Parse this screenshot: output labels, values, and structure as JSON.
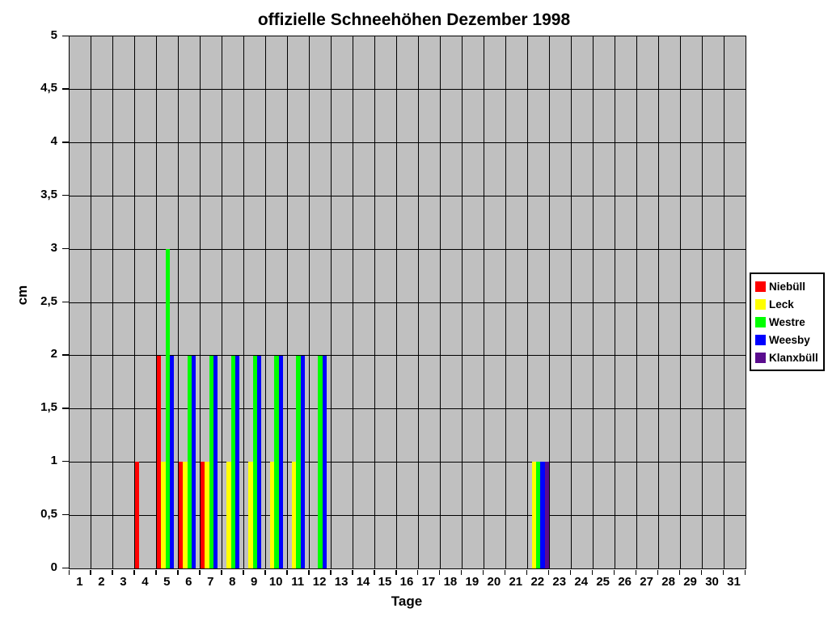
{
  "title": "offizielle Schneehöhen Dezember 1998",
  "chart_data": {
    "type": "bar",
    "title": "offizielle Schneehöhen Dezember 1998",
    "xlabel": "Tage",
    "ylabel": "cm",
    "ylim": [
      0,
      5
    ],
    "y_tick_step": 0.5,
    "y_tick_labels": [
      "0",
      "0,5",
      "1",
      "1,5",
      "2",
      "2,5",
      "3",
      "3,5",
      "4",
      "4,5",
      "5"
    ],
    "categories": [
      "1",
      "2",
      "3",
      "4",
      "5",
      "6",
      "7",
      "8",
      "9",
      "10",
      "11",
      "12",
      "13",
      "14",
      "15",
      "16",
      "17",
      "18",
      "19",
      "20",
      "21",
      "22",
      "23",
      "24",
      "25",
      "26",
      "27",
      "28",
      "29",
      "30",
      "31"
    ],
    "grid": true,
    "plot_background": "#c0c0c0",
    "gridline_color": "#000000",
    "legend_position": "right",
    "series": [
      {
        "name": "Niebüll",
        "color": "#ff0000",
        "values": [
          0,
          0,
          0,
          1,
          2,
          1,
          1,
          0,
          0,
          0,
          0,
          0,
          0,
          0,
          0,
          0,
          0,
          0,
          0,
          0,
          0,
          0,
          0,
          0,
          0,
          0,
          0,
          0,
          0,
          0,
          0
        ]
      },
      {
        "name": "Leck",
        "color": "#ffff00",
        "values": [
          0,
          0,
          0,
          0,
          1,
          1,
          1,
          1,
          1,
          1,
          1,
          0,
          0,
          0,
          0,
          0,
          0,
          0,
          0,
          0,
          0,
          1,
          0,
          0,
          0,
          0,
          0,
          0,
          0,
          0,
          0
        ]
      },
      {
        "name": "Westre",
        "color": "#00ff00",
        "values": [
          0,
          0,
          0,
          0,
          3,
          2,
          2,
          2,
          2,
          2,
          2,
          2,
          0,
          0,
          0,
          0,
          0,
          0,
          0,
          0,
          0,
          1,
          0,
          0,
          0,
          0,
          0,
          0,
          0,
          0,
          0
        ]
      },
      {
        "name": "Weesby",
        "color": "#0000ff",
        "values": [
          0,
          0,
          0,
          0,
          2,
          2,
          2,
          2,
          2,
          2,
          2,
          2,
          0,
          0,
          0,
          0,
          0,
          0,
          0,
          0,
          0,
          1,
          0,
          0,
          0,
          0,
          0,
          0,
          0,
          0,
          0
        ]
      },
      {
        "name": "Klanxbüll",
        "color": "#5a0c8e",
        "values": [
          0,
          0,
          0,
          0,
          0,
          0,
          0,
          0,
          0,
          0,
          0,
          0,
          0,
          0,
          0,
          0,
          0,
          0,
          0,
          0,
          0,
          1,
          0,
          0,
          0,
          0,
          0,
          0,
          0,
          0,
          0
        ]
      }
    ]
  }
}
